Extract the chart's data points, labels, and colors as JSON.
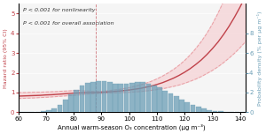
{
  "xlim": [
    60,
    142
  ],
  "ylim_left": [
    0,
    5.5
  ],
  "ylim_right": [
    0,
    11
  ],
  "xticks": [
    60,
    70,
    80,
    90,
    100,
    110,
    120,
    130,
    140
  ],
  "yticks_left": [
    0,
    1,
    2,
    3,
    4,
    5
  ],
  "yticks_right": [
    0,
    2,
    4,
    6,
    8
  ],
  "xlabel": "Annual warm-season O₃ concentration (μg m⁻³)",
  "ylabel_left": "Hazard ratio (95% CI)",
  "ylabel_right": "Probability density (% per μg m⁻¹)",
  "annotation_line1": "P < 0.001 for nonlinearity",
  "annotation_line2": "P < 0.001 for overall association",
  "hr_color": "#c0424a",
  "ci_color": "#e8a0a5",
  "ci_fill_color": "#f5d0d3",
  "bar_color": "#6a9db5",
  "bar_edge_color": "#6a9db5",
  "background_color": "#f5f5f5",
  "ref_x": 88,
  "hr_x": [
    60,
    62,
    64,
    66,
    68,
    70,
    72,
    74,
    76,
    78,
    80,
    82,
    84,
    86,
    88,
    90,
    92,
    94,
    96,
    98,
    100,
    102,
    104,
    106,
    108,
    110,
    112,
    114,
    116,
    118,
    120,
    122,
    124,
    126,
    128,
    130,
    132,
    134,
    136,
    138,
    140,
    142
  ],
  "hr_y": [
    0.82,
    0.83,
    0.84,
    0.85,
    0.86,
    0.88,
    0.89,
    0.91,
    0.93,
    0.95,
    0.97,
    0.98,
    0.99,
    1.0,
    1.0,
    1.01,
    1.03,
    1.05,
    1.07,
    1.1,
    1.13,
    1.17,
    1.21,
    1.27,
    1.33,
    1.41,
    1.5,
    1.61,
    1.73,
    1.87,
    2.03,
    2.21,
    2.42,
    2.65,
    2.92,
    3.22,
    3.55,
    3.93,
    4.35,
    4.82,
    5.33,
    5.9
  ],
  "hr_lo": [
    0.7,
    0.71,
    0.72,
    0.73,
    0.75,
    0.76,
    0.78,
    0.8,
    0.82,
    0.84,
    0.86,
    0.88,
    0.91,
    0.93,
    0.95,
    0.96,
    0.97,
    0.98,
    0.99,
    1.0,
    1.01,
    1.03,
    1.05,
    1.08,
    1.11,
    1.15,
    1.19,
    1.25,
    1.31,
    1.38,
    1.47,
    1.57,
    1.68,
    1.81,
    1.96,
    2.12,
    2.3,
    2.51,
    2.74,
    2.99,
    3.27,
    3.58
  ],
  "hr_hi": [
    1.0,
    1.0,
    1.01,
    1.02,
    1.02,
    1.03,
    1.04,
    1.05,
    1.07,
    1.08,
    1.1,
    1.11,
    1.08,
    1.07,
    1.05,
    1.06,
    1.08,
    1.12,
    1.15,
    1.2,
    1.25,
    1.32,
    1.39,
    1.47,
    1.57,
    1.69,
    1.83,
    1.99,
    2.17,
    2.38,
    2.62,
    2.9,
    3.22,
    3.58,
    3.99,
    4.46,
    5.0,
    5.6,
    6.3,
    7.1,
    8.0,
    9.0
  ],
  "hist_bins": [
    60,
    62,
    64,
    66,
    68,
    70,
    72,
    74,
    76,
    78,
    80,
    82,
    84,
    86,
    88,
    90,
    92,
    94,
    96,
    98,
    100,
    102,
    104,
    106,
    108,
    110,
    112,
    114,
    116,
    118,
    120,
    122,
    124,
    126,
    128,
    130,
    132,
    134,
    136,
    138,
    140,
    142
  ],
  "hist_vals": [
    0.0,
    0.01,
    0.02,
    0.05,
    0.12,
    0.25,
    0.42,
    0.75,
    1.25,
    1.8,
    2.3,
    2.7,
    2.95,
    3.1,
    3.2,
    3.15,
    3.05,
    2.9,
    2.85,
    2.9,
    2.95,
    3.05,
    3.1,
    2.9,
    2.7,
    2.5,
    2.2,
    1.9,
    1.6,
    1.3,
    1.0,
    0.75,
    0.55,
    0.38,
    0.25,
    0.16,
    0.1,
    0.06,
    0.03,
    0.02,
    0.01
  ]
}
